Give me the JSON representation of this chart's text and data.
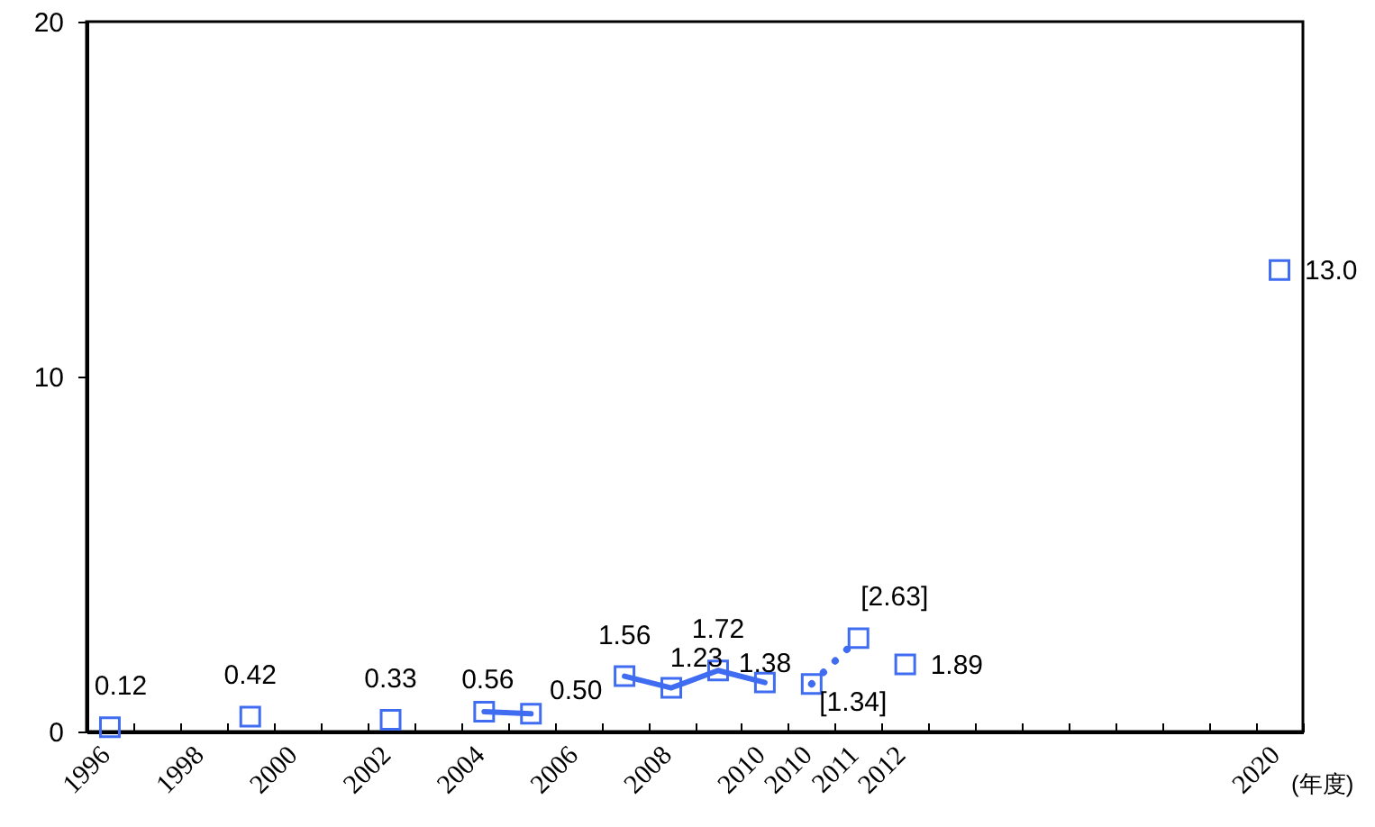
{
  "chart_data": {
    "type": "line",
    "xlabel": "(年度)",
    "categories": [
      "1996",
      null,
      "1998",
      null,
      "2000",
      null,
      "2002",
      null,
      "2004",
      null,
      "2006",
      null,
      "2008",
      null,
      "2010",
      "2010",
      "2011",
      "2012",
      null,
      null,
      null,
      null,
      null,
      null,
      null,
      "2020"
    ],
    "series": [
      {
        "type": "scatter",
        "color": "#3f6cf0",
        "values": [
          0.12,
          null,
          null,
          0.42,
          null,
          null,
          0.33,
          null,
          null,
          null,
          null,
          null,
          null,
          null,
          null,
          null,
          null,
          1.89,
          null,
          null,
          null,
          null,
          null,
          null,
          null,
          13.0
        ],
        "value_labels": [
          "0.12",
          null,
          null,
          "0.42",
          null,
          null,
          "0.33",
          null,
          null,
          null,
          null,
          null,
          null,
          null,
          null,
          null,
          null,
          "1.89",
          null,
          null,
          null,
          null,
          null,
          null,
          null,
          "13.0"
        ]
      },
      {
        "type": "line",
        "color": "#3f6cf0",
        "line_style": "solid",
        "values": [
          null,
          null,
          null,
          null,
          null,
          null,
          null,
          null,
          0.56,
          0.5,
          null,
          null,
          null,
          null,
          null,
          null,
          null,
          null,
          null,
          null,
          null,
          null,
          null,
          null,
          null,
          null
        ],
        "value_labels": [
          null,
          null,
          null,
          null,
          null,
          null,
          null,
          null,
          "0.56",
          "0.50",
          null,
          null,
          null,
          null,
          null,
          null,
          null,
          null,
          null,
          null,
          null,
          null,
          null,
          null,
          null,
          null
        ]
      },
      {
        "type": "line",
        "color": "#3f6cf0",
        "line_style": "solid",
        "values": [
          null,
          null,
          null,
          null,
          null,
          null,
          null,
          null,
          null,
          null,
          null,
          1.56,
          1.23,
          1.72,
          1.38,
          null,
          null,
          null,
          null,
          null,
          null,
          null,
          null,
          null,
          null,
          null
        ],
        "value_labels": [
          null,
          null,
          null,
          null,
          null,
          null,
          null,
          null,
          null,
          null,
          null,
          "1.56",
          "1.23",
          "1.72",
          "1.38",
          null,
          null,
          null,
          null,
          null,
          null,
          null,
          null,
          null,
          null,
          null
        ]
      },
      {
        "type": "line",
        "color": "#3f6cf0",
        "line_style": "dotted",
        "values": [
          null,
          null,
          null,
          null,
          null,
          null,
          null,
          null,
          null,
          null,
          null,
          null,
          null,
          null,
          null,
          1.34,
          2.63,
          null,
          null,
          null,
          null,
          null,
          null,
          null,
          null,
          null
        ],
        "value_labels": [
          null,
          null,
          null,
          null,
          null,
          null,
          null,
          null,
          null,
          null,
          null,
          null,
          null,
          null,
          null,
          "[1.34]",
          "[2.63]",
          null,
          null,
          null,
          null,
          null,
          null,
          null,
          null,
          null
        ]
      }
    ],
    "marker": "square",
    "ylim": [
      0,
      20
    ],
    "yticks": [
      0,
      10,
      20
    ]
  }
}
